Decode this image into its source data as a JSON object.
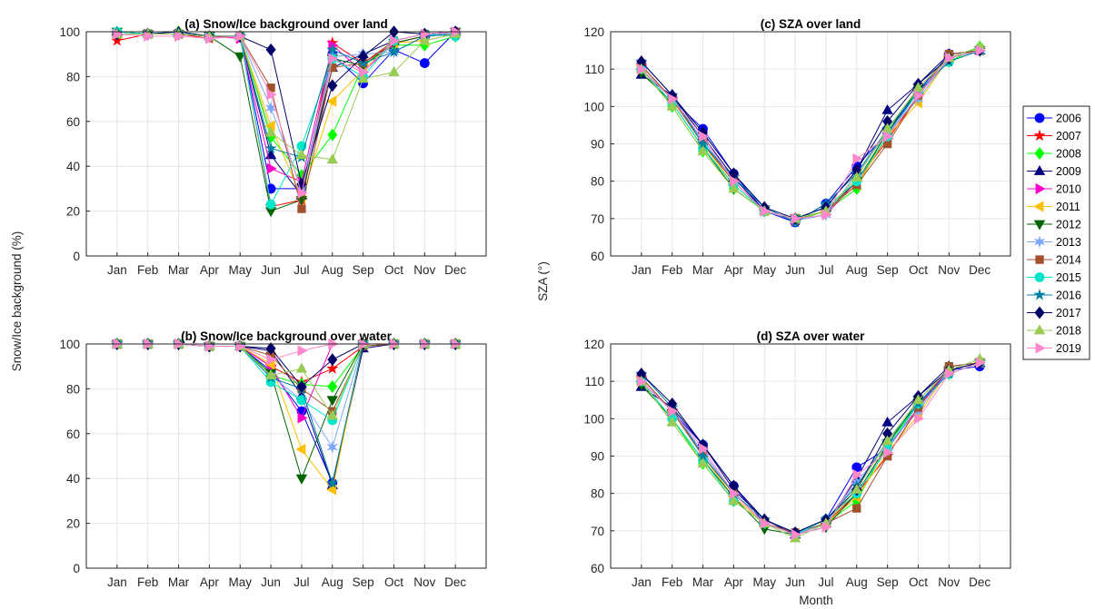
{
  "figure": {
    "y_label_left": "Snow/Ice background (%)",
    "y_label_right": "SZA (°)",
    "x_label_right": "Month"
  },
  "series_styles": [
    {
      "name": "2006",
      "color": "#0000ff",
      "marker": "circle"
    },
    {
      "name": "2007",
      "color": "#ff0000",
      "marker": "star"
    },
    {
      "name": "2008",
      "color": "#00ff00",
      "marker": "diamond"
    },
    {
      "name": "2009",
      "color": "#000080",
      "marker": "triangle-up"
    },
    {
      "name": "2010",
      "color": "#ff00cc",
      "marker": "triangle-right"
    },
    {
      "name": "2011",
      "color": "#ffc000",
      "marker": "triangle-left"
    },
    {
      "name": "2012",
      "color": "#006400",
      "marker": "triangle-down"
    },
    {
      "name": "2013",
      "color": "#7da7ff",
      "marker": "hexstar"
    },
    {
      "name": "2014",
      "color": "#a0522d",
      "marker": "square"
    },
    {
      "name": "2015",
      "color": "#00e6c8",
      "marker": "circle"
    },
    {
      "name": "2016",
      "color": "#0080a0",
      "marker": "star"
    },
    {
      "name": "2017",
      "color": "#000066",
      "marker": "diamond"
    },
    {
      "name": "2018",
      "color": "#99cc55",
      "marker": "triangle-up"
    },
    {
      "name": "2019",
      "color": "#ff88cc",
      "marker": "triangle-right"
    }
  ],
  "chart_data": [
    {
      "type": "line",
      "title": "(a) Snow/Ice background over land",
      "categories": [
        "Jan",
        "Feb",
        "Mar",
        "Apr",
        "May",
        "Jun",
        "Jul",
        "Aug",
        "Sep",
        "Oct",
        "Nov",
        "Dec"
      ],
      "ylim": [
        0,
        100
      ],
      "yticks": [
        0,
        20,
        40,
        60,
        80,
        100
      ],
      "grid": true,
      "series": [
        {
          "name": "2006",
          "values": [
            99,
            99,
            99,
            98,
            98,
            30,
            30,
            90,
            77,
            92,
            86,
            100
          ]
        },
        {
          "name": "2007",
          "values": [
            96,
            99,
            99,
            97,
            98,
            22,
            25,
            95,
            86,
            95,
            98,
            99
          ]
        },
        {
          "name": "2008",
          "values": [
            99,
            99,
            100,
            98,
            98,
            53,
            36,
            54,
            85,
            94,
            94,
            98
          ]
        },
        {
          "name": "2009",
          "values": [
            100,
            99,
            100,
            98,
            98,
            45,
            27,
            84,
            90,
            96,
            99,
            100
          ]
        },
        {
          "name": "2010",
          "values": [
            99,
            99,
            99,
            98,
            97,
            39,
            33,
            94,
            82,
            95,
            98,
            99
          ]
        },
        {
          "name": "2011",
          "values": [
            99,
            99,
            99,
            98,
            98,
            58,
            26,
            69,
            83,
            95,
            96,
            99
          ]
        },
        {
          "name": "2012",
          "values": [
            100,
            99,
            99,
            98,
            89,
            20,
            25,
            88,
            85,
            95,
            98,
            100
          ]
        },
        {
          "name": "2013",
          "values": [
            99,
            99,
            99,
            98,
            98,
            66,
            30,
            89,
            90,
            91,
            98,
            100
          ]
        },
        {
          "name": "2014",
          "values": [
            99,
            99,
            99,
            98,
            98,
            75,
            21,
            84,
            86,
            96,
            99,
            100
          ]
        },
        {
          "name": "2015",
          "values": [
            100,
            99,
            99,
            98,
            98,
            23,
            49,
            88,
            80,
            96,
            99,
            98
          ]
        },
        {
          "name": "2016",
          "values": [
            99,
            99,
            99,
            98,
            98,
            48,
            44,
            92,
            86,
            91,
            98,
            99
          ]
        },
        {
          "name": "2017",
          "values": [
            99,
            99,
            99,
            98,
            98,
            92,
            32,
            76,
            89,
            100,
            99,
            100
          ]
        },
        {
          "name": "2018",
          "values": [
            99,
            99,
            99,
            98,
            98,
            55,
            45,
            43,
            79,
            82,
            96,
            99
          ]
        },
        {
          "name": "2019",
          "values": [
            99,
            98,
            98,
            97,
            98,
            72,
            28,
            88,
            82,
            96,
            99,
            100
          ]
        }
      ]
    },
    {
      "type": "line",
      "title": "(b) Snow/Ice background over water",
      "categories": [
        "Jan",
        "Feb",
        "Mar",
        "Apr",
        "May",
        "Jun",
        "Jul",
        "Aug",
        "Sep",
        "Oct",
        "Nov",
        "Dec"
      ],
      "ylim": [
        0,
        100
      ],
      "yticks": [
        0,
        20,
        40,
        60,
        80,
        100
      ],
      "grid": true,
      "series": [
        {
          "name": "2006",
          "values": [
            100,
            100,
            100,
            99,
            99,
            88,
            70,
            38,
            99,
            100,
            100,
            100
          ]
        },
        {
          "name": "2007",
          "values": [
            100,
            100,
            100,
            99,
            99,
            90,
            83,
            89,
            99,
            100,
            100,
            100
          ]
        },
        {
          "name": "2008",
          "values": [
            100,
            100,
            100,
            99,
            99,
            86,
            82,
            81,
            99,
            100,
            100,
            100
          ]
        },
        {
          "name": "2009",
          "values": [
            100,
            100,
            100,
            99,
            99,
            97,
            77,
            37,
            98,
            100,
            100,
            100
          ]
        },
        {
          "name": "2010",
          "values": [
            100,
            100,
            100,
            99,
            99,
            90,
            67,
            100,
            100,
            100,
            100,
            100
          ]
        },
        {
          "name": "2011",
          "values": [
            100,
            100,
            100,
            99,
            99,
            91,
            53,
            35,
            100,
            100,
            100,
            100
          ]
        },
        {
          "name": "2012",
          "values": [
            100,
            100,
            100,
            99,
            99,
            87,
            40,
            75,
            100,
            100,
            100,
            100
          ]
        },
        {
          "name": "2013",
          "values": [
            100,
            100,
            100,
            99,
            99,
            86,
            75,
            54,
            100,
            100,
            100,
            100
          ]
        },
        {
          "name": "2014",
          "values": [
            100,
            100,
            100,
            99,
            99,
            95,
            80,
            70,
            99,
            100,
            100,
            100
          ]
        },
        {
          "name": "2015",
          "values": [
            100,
            100,
            100,
            99,
            99,
            83,
            75,
            66,
            100,
            100,
            100,
            100
          ]
        },
        {
          "name": "2016",
          "values": [
            100,
            100,
            100,
            99,
            99,
            85,
            80,
            38,
            100,
            100,
            100,
            100
          ]
        },
        {
          "name": "2017",
          "values": [
            100,
            100,
            100,
            99,
            99,
            98,
            81,
            93,
            100,
            100,
            100,
            100
          ]
        },
        {
          "name": "2018",
          "values": [
            100,
            100,
            100,
            99,
            99,
            86,
            89,
            68,
            100,
            100,
            100,
            100
          ]
        },
        {
          "name": "2019",
          "values": [
            100,
            100,
            100,
            99,
            99,
            93,
            97,
            100,
            100,
            100,
            100,
            100
          ]
        }
      ]
    },
    {
      "type": "line",
      "title": "(c) SZA over land",
      "categories": [
        "Jan",
        "Feb",
        "Mar",
        "Apr",
        "May",
        "Jun",
        "Jul",
        "Aug",
        "Sep",
        "Oct",
        "Nov",
        "Dec"
      ],
      "ylim": [
        60,
        120
      ],
      "yticks": [
        60,
        70,
        80,
        90,
        100,
        110,
        120
      ],
      "grid": true,
      "series": [
        {
          "name": "2006",
          "values": [
            110,
            102,
            94,
            82,
            72,
            69,
            74,
            84,
            93,
            104,
            114,
            115
          ]
        },
        {
          "name": "2007",
          "values": [
            111,
            102,
            90,
            80,
            72,
            69.5,
            72,
            80,
            91,
            103,
            113,
            115
          ]
        },
        {
          "name": "2008",
          "values": [
            110,
            100,
            88,
            78,
            72,
            69.5,
            72,
            78,
            94,
            104,
            112,
            116
          ]
        },
        {
          "name": "2009",
          "values": [
            108.5,
            103,
            92,
            81,
            72,
            70,
            73,
            83,
            99,
            106,
            114,
            115
          ]
        },
        {
          "name": "2010",
          "values": [
            111,
            102,
            91,
            80,
            72,
            69.5,
            71,
            80,
            92,
            103,
            113,
            115
          ]
        },
        {
          "name": "2011",
          "values": [
            111,
            102,
            90,
            79,
            72,
            70,
            72,
            79,
            92,
            101,
            113,
            115
          ]
        },
        {
          "name": "2012",
          "values": [
            109,
            101,
            89,
            78,
            72,
            70,
            72,
            80,
            93,
            105,
            113,
            115
          ]
        },
        {
          "name": "2013",
          "values": [
            111,
            102,
            91,
            80,
            72,
            69.5,
            71,
            82,
            93,
            102,
            113,
            115
          ]
        },
        {
          "name": "2014",
          "values": [
            111,
            102,
            90,
            80,
            72,
            70,
            72,
            79,
            90,
            103,
            114,
            115
          ]
        },
        {
          "name": "2015",
          "values": [
            110,
            101,
            89,
            79,
            72,
            70,
            73,
            80,
            92,
            104,
            112,
            115
          ]
        },
        {
          "name": "2016",
          "values": [
            112,
            103,
            90,
            81,
            73,
            69,
            74,
            82,
            94,
            104,
            112,
            115
          ]
        },
        {
          "name": "2017",
          "values": [
            112,
            103,
            93,
            82,
            73,
            70,
            73,
            83,
            96,
            106,
            113,
            115
          ]
        },
        {
          "name": "2018",
          "values": [
            110,
            100,
            88,
            78,
            72,
            70,
            72,
            81,
            94,
            105,
            113,
            116
          ]
        },
        {
          "name": "2019",
          "values": [
            110,
            102,
            92,
            80,
            72,
            70,
            71,
            86,
            92,
            103,
            113,
            115
          ]
        }
      ]
    },
    {
      "type": "line",
      "title": "(d) SZA over water",
      "categories": [
        "Jan",
        "Feb",
        "Mar",
        "Apr",
        "May",
        "Jun",
        "Jul",
        "Aug",
        "Sep",
        "Oct",
        "Nov",
        "Dec"
      ],
      "ylim": [
        60,
        120
      ],
      "yticks": [
        60,
        70,
        80,
        90,
        100,
        110,
        120
      ],
      "grid": true,
      "series": [
        {
          "name": "2006",
          "values": [
            110,
            102,
            93,
            82,
            72,
            69.5,
            73,
            87,
            92,
            104,
            113,
            114
          ]
        },
        {
          "name": "2007",
          "values": [
            111,
            102,
            90,
            80,
            72,
            69,
            72,
            80,
            90,
            103,
            113,
            115
          ]
        },
        {
          "name": "2008",
          "values": [
            110,
            100,
            88,
            78,
            72,
            69,
            72,
            78,
            93,
            104,
            112,
            115
          ]
        },
        {
          "name": "2009",
          "values": [
            108.5,
            103,
            93,
            81,
            73,
            69,
            72,
            84,
            99,
            106,
            114,
            115
          ]
        },
        {
          "name": "2010",
          "values": [
            111,
            102,
            91,
            80,
            72,
            69,
            71,
            80,
            92,
            103,
            113,
            115
          ]
        },
        {
          "name": "2011",
          "values": [
            111,
            102,
            90,
            79,
            72,
            69,
            72,
            79,
            91,
            101,
            113,
            115
          ]
        },
        {
          "name": "2012",
          "values": [
            109,
            100,
            89,
            79,
            70.5,
            69,
            71,
            80,
            93,
            105,
            113,
            115
          ]
        },
        {
          "name": "2013",
          "values": [
            111,
            102,
            91,
            80,
            72,
            69,
            72,
            83,
            93,
            102,
            113,
            115
          ]
        },
        {
          "name": "2014",
          "values": [
            111,
            102,
            90,
            80,
            72,
            69.5,
            72,
            76,
            90,
            103,
            114,
            115
          ]
        },
        {
          "name": "2015",
          "values": [
            110,
            100,
            89,
            78,
            72,
            69,
            73,
            80,
            92,
            104,
            112,
            115
          ]
        },
        {
          "name": "2016",
          "values": [
            112,
            103,
            90,
            80,
            73,
            69.5,
            73,
            82,
            94,
            104,
            112,
            115
          ]
        },
        {
          "name": "2017",
          "values": [
            112,
            104,
            93,
            82,
            73,
            69.5,
            73,
            81,
            96,
            106,
            113,
            115
          ]
        },
        {
          "name": "2018",
          "values": [
            110,
            99,
            88,
            78,
            72,
            68,
            72,
            81,
            94,
            105,
            113,
            116
          ]
        },
        {
          "name": "2019",
          "values": [
            110,
            102,
            92,
            80,
            72,
            69,
            71,
            85,
            91,
            100,
            112,
            115
          ]
        }
      ]
    }
  ]
}
